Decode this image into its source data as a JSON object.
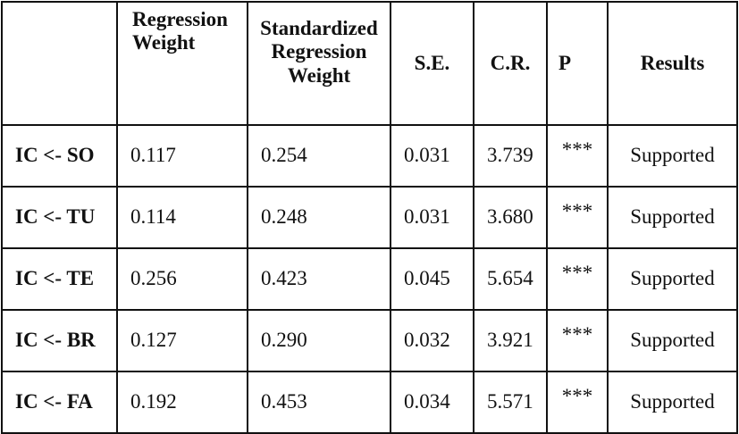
{
  "table": {
    "headers": [
      "",
      "Regression Weight",
      "Standardized Regression Weight",
      "S.E.",
      "C.R.",
      "P",
      "Results"
    ],
    "rows": [
      {
        "path": "IC <- SO",
        "regression_weight": "0.117",
        "standardized_weight": "0.254",
        "se": "0.031",
        "cr": "3.739",
        "p": "***",
        "result": "Supported"
      },
      {
        "path": "IC <- TU",
        "regression_weight": "0.114",
        "standardized_weight": "0.248",
        "se": "0.031",
        "cr": "3.680",
        "p": "***",
        "result": "Supported"
      },
      {
        "path": "IC <- TE",
        "regression_weight": "0.256",
        "standardized_weight": "0.423",
        "se": "0.045",
        "cr": "5.654",
        "p": "***",
        "result": "Supported"
      },
      {
        "path": "IC <- BR",
        "regression_weight": "0.127",
        "standardized_weight": "0.290",
        "se": "0.032",
        "cr": "3.921",
        "p": "***",
        "result": "Supported"
      },
      {
        "path": "IC <- FA",
        "regression_weight": "0.192",
        "standardized_weight": "0.453",
        "se": "0.034",
        "cr": "5.571",
        "p": "***",
        "result": "Supported"
      }
    ]
  }
}
